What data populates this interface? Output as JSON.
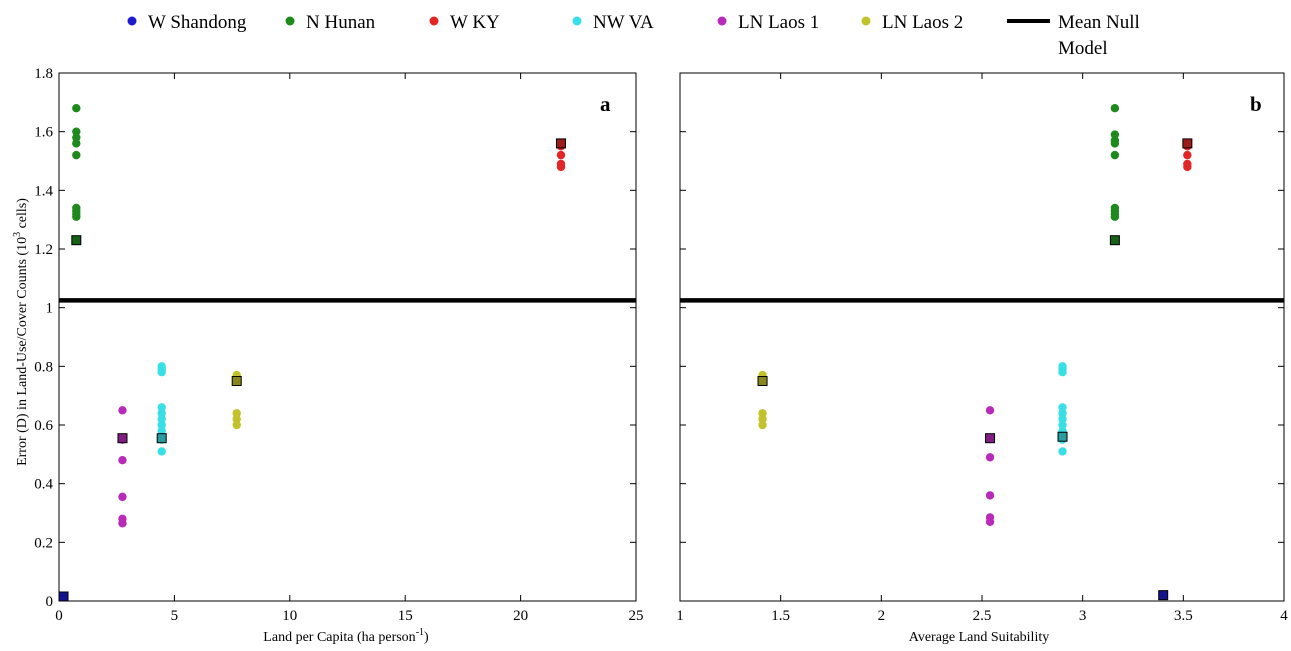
{
  "colors": {
    "W Shandong": "#1c1ccf",
    "N Hunan": "#1e8a1e",
    "W KY": "#e02626",
    "NW VA": "#38e0e6",
    "LN Laos 1": "#b82bb8",
    "LN Laos 2": "#c2c22a",
    "mean": "#000000"
  },
  "legend": [
    {
      "label": "W Shandong",
      "key": "W Shandong"
    },
    {
      "label": "N Hunan",
      "key": "N Hunan"
    },
    {
      "label": "W KY",
      "key": "W KY"
    },
    {
      "label": "NW VA",
      "key": "NW VA"
    },
    {
      "label": "LN Laos 1",
      "key": "LN Laos 1"
    },
    {
      "label": "LN Laos 2",
      "key": "LN Laos 2"
    },
    {
      "label_line1": "Mean Null",
      "label_line2": "Model",
      "key": "mean"
    }
  ],
  "y_axis_label": {
    "pre": "Error (D) in Land-Use/Cover Counts (10",
    "sup": "3",
    "post": " cells)"
  },
  "chart_data": [
    {
      "type": "scatter",
      "panel": "a",
      "xlabel": {
        "pre": "Land per Capita (ha person",
        "sup": "-1",
        "post": ")"
      },
      "xlim": [
        0,
        25
      ],
      "ylim": [
        0,
        1.8
      ],
      "xticks": [
        0,
        5,
        10,
        15,
        20,
        25
      ],
      "xtick_labels": [
        "0",
        "5",
        "10",
        "15",
        "20",
        "25"
      ],
      "yticks": [
        0,
        0.2,
        0.4,
        0.6,
        0.8,
        1,
        1.2,
        1.4,
        1.6,
        1.8
      ],
      "ytick_labels": [
        "0",
        "0.2",
        "0.4",
        "0.6",
        "0.8",
        "1",
        "1.2",
        "1.4",
        "1.6",
        "1.8"
      ],
      "mean_null_model": 1.025,
      "series": [
        {
          "name": "W Shandong",
          "x": 0.15,
          "points": [],
          "mean": 0.01
        },
        {
          "name": "N Hunan",
          "x": 0.75,
          "points": [
            1.68,
            1.6,
            1.58,
            1.56,
            1.52,
            1.34,
            1.33,
            1.32,
            1.31
          ],
          "mean": 1.23
        },
        {
          "name": "W KY",
          "x": 21.75,
          "points": [
            1.56,
            1.55,
            1.52,
            1.49,
            1.48
          ],
          "mean": 1.56
        },
        {
          "name": "NW VA",
          "x": 4.45,
          "points": [
            0.8,
            0.79,
            0.78,
            0.66,
            0.64,
            0.62,
            0.6,
            0.58,
            0.55,
            0.51
          ],
          "mean": 0.555
        },
        {
          "name": "LN Laos 1",
          "x": 2.75,
          "points": [
            0.65,
            0.55,
            0.48,
            0.355,
            0.28,
            0.265
          ],
          "mean": 0.555
        },
        {
          "name": "LN Laos 2",
          "x": 7.7,
          "points": [
            0.77,
            0.76,
            0.64,
            0.62,
            0.6
          ],
          "mean": 0.75
        }
      ]
    },
    {
      "type": "scatter",
      "panel": "b",
      "xlabel": {
        "pre": "Average Land Suitability",
        "sup": "",
        "post": ""
      },
      "xlim": [
        1,
        4
      ],
      "ylim": [
        0,
        1.8
      ],
      "xticks": [
        1,
        1.5,
        2,
        2.5,
        3,
        3.5,
        4
      ],
      "xtick_labels": [
        "1",
        "1.5",
        "2",
        "2.5",
        "3",
        "3.5",
        "4"
      ],
      "yticks": [
        0,
        0.2,
        0.4,
        0.6,
        0.8,
        1,
        1.2,
        1.4,
        1.6,
        1.8
      ],
      "mean_null_model": 1.025,
      "series": [
        {
          "name": "W Shandong",
          "x": 3.4,
          "points": [],
          "mean": 0.02
        },
        {
          "name": "N Hunan",
          "x": 3.16,
          "points": [
            1.68,
            1.59,
            1.57,
            1.56,
            1.52,
            1.34,
            1.33,
            1.32,
            1.31
          ],
          "mean": 1.23
        },
        {
          "name": "W KY",
          "x": 3.52,
          "points": [
            1.56,
            1.55,
            1.52,
            1.49,
            1.48
          ],
          "mean": 1.56
        },
        {
          "name": "NW VA",
          "x": 2.9,
          "points": [
            0.8,
            0.79,
            0.78,
            0.66,
            0.64,
            0.62,
            0.6,
            0.58,
            0.55,
            0.51
          ],
          "mean": 0.56
        },
        {
          "name": "LN Laos 1",
          "x": 2.54,
          "points": [
            0.65,
            0.555,
            0.49,
            0.36,
            0.285,
            0.27
          ],
          "mean": 0.555
        },
        {
          "name": "LN Laos 2",
          "x": 1.41,
          "points": [
            0.77,
            0.76,
            0.64,
            0.62,
            0.6
          ],
          "mean": 0.75
        }
      ]
    }
  ]
}
